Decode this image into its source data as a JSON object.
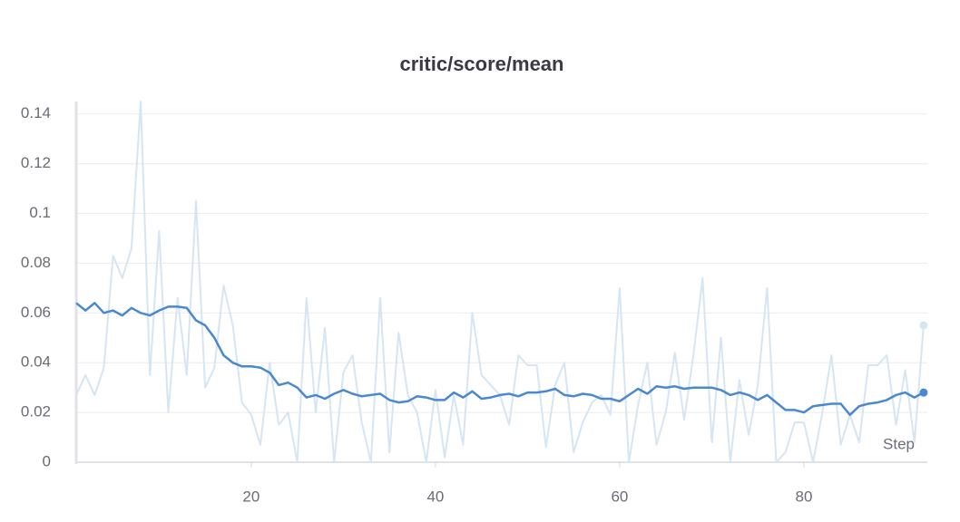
{
  "chart_data": {
    "type": "line",
    "title": "critic/score/mean",
    "xlabel": "Step",
    "x": [
      1,
      2,
      3,
      4,
      5,
      6,
      7,
      8,
      9,
      10,
      11,
      12,
      13,
      14,
      15,
      16,
      17,
      18,
      19,
      20,
      21,
      22,
      23,
      24,
      25,
      26,
      27,
      28,
      29,
      30,
      31,
      32,
      33,
      34,
      35,
      36,
      37,
      38,
      39,
      40,
      41,
      42,
      43,
      44,
      45,
      46,
      47,
      48,
      49,
      50,
      51,
      52,
      53,
      54,
      55,
      56,
      57,
      58,
      59,
      60,
      61,
      62,
      63,
      64,
      65,
      66,
      67,
      68,
      69,
      70,
      71,
      72,
      73,
      74,
      75,
      76,
      77,
      78,
      79,
      80,
      81,
      82,
      83,
      84,
      85,
      86,
      87,
      88,
      89,
      90,
      91,
      92,
      93
    ],
    "series": [
      {
        "color": "#d6e5f3",
        "values": [
          0.027,
          0.035,
          0.027,
          0.038,
          0.083,
          0.074,
          0.086,
          0.145,
          0.035,
          0.093,
          0.02,
          0.066,
          0.035,
          0.105,
          0.03,
          0.038,
          0.071,
          0.055,
          0.024,
          0.019,
          0.007,
          0.04,
          0.015,
          0.02,
          0.0,
          0.066,
          0.02,
          0.054,
          0.0,
          0.036,
          0.043,
          0.016,
          0.0,
          0.066,
          0.004,
          0.052,
          0.027,
          0.02,
          0.0,
          0.029,
          0.002,
          0.027,
          0.007,
          0.06,
          0.035,
          0.031,
          0.027,
          0.015,
          0.043,
          0.039,
          0.039,
          0.006,
          0.031,
          0.04,
          0.004,
          0.016,
          0.024,
          0.027,
          0.019,
          0.07,
          0.0,
          0.023,
          0.04,
          0.007,
          0.02,
          0.044,
          0.017,
          0.043,
          0.074,
          0.008,
          0.05,
          0.0,
          0.033,
          0.011,
          0.031,
          0.07,
          0.0,
          0.004,
          0.016,
          0.016,
          0.0,
          0.02,
          0.043,
          0.007,
          0.019,
          0.008,
          0.039,
          0.039,
          0.043,
          0.015,
          0.037,
          0.008,
          0.055
        ]
      },
      {
        "color": "#4a88cf",
        "values": [
          0.064,
          0.061,
          0.064,
          0.06,
          0.061,
          0.059,
          0.062,
          0.06,
          0.059,
          0.061,
          0.0625,
          0.0625,
          0.062,
          0.057,
          0.055,
          0.05,
          0.043,
          0.04,
          0.0385,
          0.0385,
          0.038,
          0.036,
          0.031,
          0.032,
          0.03,
          0.026,
          0.027,
          0.0255,
          0.0275,
          0.029,
          0.0275,
          0.0265,
          0.027,
          0.0275,
          0.025,
          0.024,
          0.0245,
          0.0265,
          0.026,
          0.025,
          0.025,
          0.028,
          0.026,
          0.0285,
          0.0255,
          0.026,
          0.027,
          0.0275,
          0.0265,
          0.028,
          0.028,
          0.0285,
          0.0295,
          0.027,
          0.0265,
          0.0275,
          0.027,
          0.0255,
          0.0255,
          0.0245,
          0.027,
          0.0295,
          0.0275,
          0.0305,
          0.03,
          0.0305,
          0.0295,
          0.03,
          0.03,
          0.03,
          0.029,
          0.027,
          0.028,
          0.027,
          0.025,
          0.027,
          0.024,
          0.021,
          0.021,
          0.02,
          0.0225,
          0.023,
          0.0235,
          0.0235,
          0.019,
          0.0225,
          0.0235,
          0.024,
          0.025,
          0.027,
          0.028,
          0.026,
          0.028
        ]
      }
    ],
    "xlim": [
      1,
      93.4
    ],
    "ylim": [
      0,
      0.145
    ],
    "xticks": [
      20,
      40,
      60,
      80
    ],
    "yticks": [
      0,
      0.02,
      0.04,
      0.06,
      0.08,
      0.1,
      0.12,
      0.14
    ],
    "grid": true
  }
}
